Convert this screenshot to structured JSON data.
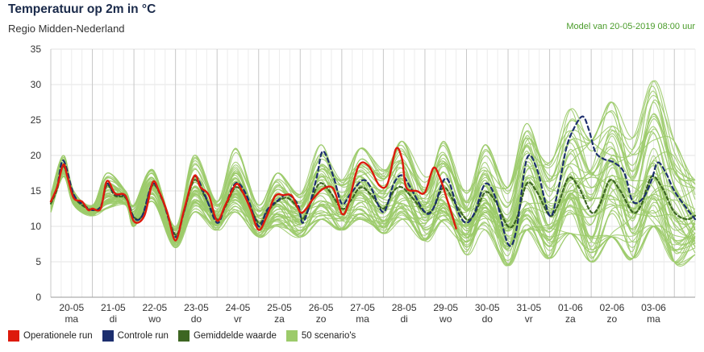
{
  "header": {
    "title": "Temperatuur op 2m in °C",
    "subtitle": "Regio Midden-Nederland",
    "model_run": "Model van 20-05-2019 08:00 uur"
  },
  "colors": {
    "operational": "#dd1a0c",
    "control": "#1c2e6e",
    "mean": "#3d6622",
    "scenarios": "#9ccb6a"
  },
  "legend": [
    {
      "label": "Operationele run",
      "color": "#dd1a0c"
    },
    {
      "label": "Controle run",
      "color": "#1c2e6e"
    },
    {
      "label": "Gemiddelde waarde",
      "color": "#3d6622"
    },
    {
      "label": "50 scenario's",
      "color": "#9ccb6a"
    }
  ],
  "chart_data": {
    "type": "line",
    "title": "Temperatuur op 2m in °C",
    "ylim": [
      0,
      35
    ],
    "yticks": [
      0,
      5,
      10,
      15,
      20,
      25,
      30,
      35
    ],
    "xlim": [
      0,
      15.5
    ],
    "x_unit": "days after 20-05 00:00",
    "day_labels": [
      {
        "date": "20-05",
        "day": "ma"
      },
      {
        "date": "21-05",
        "day": "di"
      },
      {
        "date": "22-05",
        "day": "wo"
      },
      {
        "date": "23-05",
        "day": "do"
      },
      {
        "date": "24-05",
        "day": "vr"
      },
      {
        "date": "25-05",
        "day": "za"
      },
      {
        "date": "26-05",
        "day": "zo"
      },
      {
        "date": "27-05",
        "day": "ma"
      },
      {
        "date": "28-05",
        "day": "di"
      },
      {
        "date": "29-05",
        "day": "wo"
      },
      {
        "date": "30-05",
        "day": "do"
      },
      {
        "date": "31-05",
        "day": "vr"
      },
      {
        "date": "01-06",
        "day": "za"
      },
      {
        "date": "02-06",
        "day": "zo"
      },
      {
        "date": "03-06",
        "day": "ma"
      }
    ],
    "grid": true,
    "series": [
      {
        "name": "Operationele run",
        "style": "solid",
        "points": [
          [
            0.0,
            13.5
          ],
          [
            0.15,
            15.5
          ],
          [
            0.3,
            18.7
          ],
          [
            0.4,
            17.0
          ],
          [
            0.55,
            14.0
          ],
          [
            0.75,
            13.5
          ],
          [
            0.9,
            12.3
          ],
          [
            1.0,
            12.5
          ],
          [
            1.2,
            12.5
          ],
          [
            1.35,
            16.4
          ],
          [
            1.55,
            14.6
          ],
          [
            1.8,
            14.3
          ],
          [
            2.0,
            10.7
          ],
          [
            2.25,
            11.5
          ],
          [
            2.45,
            16.2
          ],
          [
            2.6,
            15.0
          ],
          [
            2.8,
            12.0
          ],
          [
            3.0,
            8.0
          ],
          [
            3.2,
            12.2
          ],
          [
            3.45,
            17.1
          ],
          [
            3.6,
            15.5
          ],
          [
            3.8,
            14.4
          ],
          [
            4.0,
            10.8
          ],
          [
            4.2,
            13.0
          ],
          [
            4.45,
            15.9
          ],
          [
            4.6,
            15.0
          ],
          [
            4.8,
            12.5
          ],
          [
            5.0,
            9.5
          ],
          [
            5.2,
            11.5
          ],
          [
            5.4,
            14.3
          ],
          [
            5.6,
            14.4
          ],
          [
            5.8,
            14.3
          ],
          [
            6.0,
            12.0
          ],
          [
            6.15,
            12.5
          ],
          [
            6.3,
            13.8
          ],
          [
            6.55,
            15.3
          ],
          [
            6.8,
            15.3
          ],
          [
            7.0,
            11.8
          ],
          [
            7.15,
            13.0
          ],
          [
            7.4,
            18.5
          ],
          [
            7.65,
            18.5
          ],
          [
            7.9,
            15.8
          ],
          [
            8.1,
            16.0
          ],
          [
            8.3,
            20.9
          ],
          [
            8.45,
            19.5
          ],
          [
            8.55,
            15.5
          ],
          [
            8.8,
            15.0
          ],
          [
            9.0,
            14.8
          ],
          [
            9.2,
            18.2
          ],
          [
            9.35,
            17.0
          ],
          [
            9.55,
            13.5
          ],
          [
            9.75,
            9.7
          ]
        ]
      },
      {
        "name": "Controle run",
        "style": "dashed",
        "points": [
          [
            0.0,
            13.5
          ],
          [
            0.15,
            15.5
          ],
          [
            0.3,
            19.3
          ],
          [
            0.55,
            14.5
          ],
          [
            0.8,
            13.0
          ],
          [
            1.0,
            12.3
          ],
          [
            1.2,
            12.8
          ],
          [
            1.35,
            16.0
          ],
          [
            1.55,
            14.5
          ],
          [
            1.8,
            14.2
          ],
          [
            2.0,
            11.2
          ],
          [
            2.2,
            11.5
          ],
          [
            2.45,
            16.0
          ],
          [
            2.7,
            13.5
          ],
          [
            3.0,
            8.5
          ],
          [
            3.2,
            12.0
          ],
          [
            3.45,
            17.0
          ],
          [
            3.7,
            14.5
          ],
          [
            4.0,
            10.5
          ],
          [
            4.2,
            13.0
          ],
          [
            4.45,
            16.1
          ],
          [
            4.7,
            14.5
          ],
          [
            5.0,
            10.0
          ],
          [
            5.2,
            12.3
          ],
          [
            5.45,
            13.6
          ],
          [
            5.7,
            14.5
          ],
          [
            5.95,
            13.0
          ],
          [
            6.05,
            10.5
          ],
          [
            6.2,
            12.5
          ],
          [
            6.4,
            17.0
          ],
          [
            6.55,
            20.6
          ],
          [
            6.8,
            17.0
          ],
          [
            7.0,
            13.2
          ],
          [
            7.2,
            14.5
          ],
          [
            7.5,
            16.5
          ],
          [
            7.7,
            15.5
          ],
          [
            8.0,
            12.0
          ],
          [
            8.25,
            16.0
          ],
          [
            8.45,
            17.2
          ],
          [
            8.65,
            15.5
          ],
          [
            9.0,
            12.0
          ],
          [
            9.2,
            12.5
          ],
          [
            9.45,
            16.5
          ],
          [
            9.6,
            16.0
          ],
          [
            9.8,
            12.0
          ],
          [
            10.0,
            10.5
          ],
          [
            10.2,
            12.0
          ],
          [
            10.45,
            16.0
          ],
          [
            10.7,
            14.0
          ],
          [
            11.0,
            7.5
          ],
          [
            11.2,
            9.5
          ],
          [
            11.45,
            19.5
          ],
          [
            11.7,
            18.0
          ],
          [
            12.0,
            11.5
          ],
          [
            12.2,
            15.0
          ],
          [
            12.4,
            21.0
          ],
          [
            12.6,
            24.0
          ],
          [
            12.8,
            25.5
          ],
          [
            12.95,
            23.5
          ],
          [
            13.1,
            20.5
          ],
          [
            13.3,
            19.5
          ],
          [
            13.55,
            19.0
          ],
          [
            13.8,
            17.5
          ],
          [
            14.0,
            13.5
          ],
          [
            14.25,
            14.0
          ],
          [
            14.45,
            16.5
          ],
          [
            14.6,
            19.0
          ],
          [
            14.8,
            17.5
          ],
          [
            15.0,
            15.0
          ],
          [
            15.3,
            12.5
          ],
          [
            15.5,
            11.0
          ]
        ]
      },
      {
        "name": "Gemiddelde waarde",
        "style": "solid",
        "points": [
          [
            0.0,
            13.2
          ],
          [
            0.15,
            15.2
          ],
          [
            0.3,
            18.5
          ],
          [
            0.55,
            14.3
          ],
          [
            0.8,
            12.8
          ],
          [
            1.0,
            12.3
          ],
          [
            1.2,
            12.8
          ],
          [
            1.35,
            15.8
          ],
          [
            1.55,
            14.3
          ],
          [
            1.8,
            14.0
          ],
          [
            2.0,
            11.3
          ],
          [
            2.2,
            11.5
          ],
          [
            2.45,
            15.8
          ],
          [
            2.7,
            13.5
          ],
          [
            3.0,
            8.8
          ],
          [
            3.2,
            12.0
          ],
          [
            3.45,
            16.5
          ],
          [
            3.7,
            14.3
          ],
          [
            4.0,
            11.0
          ],
          [
            4.2,
            12.8
          ],
          [
            4.45,
            15.5
          ],
          [
            4.7,
            14.0
          ],
          [
            5.0,
            10.5
          ],
          [
            5.2,
            12.0
          ],
          [
            5.45,
            13.5
          ],
          [
            5.7,
            14.0
          ],
          [
            5.95,
            12.5
          ],
          [
            6.05,
            11.0
          ],
          [
            6.2,
            12.5
          ],
          [
            6.45,
            16.0
          ],
          [
            6.7,
            15.0
          ],
          [
            7.0,
            12.5
          ],
          [
            7.2,
            13.5
          ],
          [
            7.45,
            15.5
          ],
          [
            7.7,
            14.5
          ],
          [
            8.0,
            12.5
          ],
          [
            8.25,
            15.0
          ],
          [
            8.45,
            15.5
          ],
          [
            8.7,
            14.0
          ],
          [
            9.0,
            12.0
          ],
          [
            9.2,
            12.5
          ],
          [
            9.45,
            15.5
          ],
          [
            9.7,
            13.5
          ],
          [
            10.0,
            11.0
          ],
          [
            10.2,
            11.8
          ],
          [
            10.45,
            14.8
          ],
          [
            10.7,
            13.5
          ],
          [
            11.0,
            10.0
          ],
          [
            11.2,
            11.0
          ],
          [
            11.45,
            16.0
          ],
          [
            11.7,
            14.8
          ],
          [
            12.0,
            11.5
          ],
          [
            12.2,
            13.0
          ],
          [
            12.45,
            16.8
          ],
          [
            12.7,
            15.5
          ],
          [
            13.0,
            12.0
          ],
          [
            13.2,
            13.0
          ],
          [
            13.45,
            16.5
          ],
          [
            13.7,
            15.0
          ],
          [
            14.0,
            12.0
          ],
          [
            14.2,
            13.0
          ],
          [
            14.45,
            17.0
          ],
          [
            14.7,
            15.5
          ],
          [
            15.0,
            12.0
          ],
          [
            15.3,
            11.0
          ],
          [
            15.5,
            11.5
          ]
        ]
      }
    ],
    "scenarios": {
      "name": "50 scenario's",
      "count": 50,
      "envelope_x": [
        0.0,
        0.3,
        0.55,
        1.0,
        1.35,
        1.8,
        2.0,
        2.45,
        3.0,
        3.45,
        4.0,
        4.45,
        5.0,
        5.45,
        6.0,
        6.5,
        7.0,
        7.45,
        8.0,
        8.45,
        9.0,
        9.45,
        10.0,
        10.45,
        11.0,
        11.45,
        12.0,
        12.5,
        13.0,
        13.5,
        14.0,
        14.5,
        15.0,
        15.5
      ],
      "envelope_min": [
        12.0,
        17.0,
        13.0,
        11.5,
        12.5,
        13.0,
        10.0,
        13.5,
        7.0,
        12.0,
        9.5,
        12.0,
        8.5,
        10.0,
        8.5,
        11.0,
        9.5,
        11.0,
        9.0,
        11.0,
        8.0,
        10.5,
        6.0,
        9.5,
        4.5,
        9.5,
        5.5,
        9.0,
        5.0,
        8.5,
        5.5,
        10.0,
        5.0,
        6.0
      ],
      "envelope_max": [
        14.5,
        20.0,
        15.0,
        13.0,
        17.5,
        15.0,
        13.0,
        18.0,
        10.0,
        20.0,
        13.5,
        21.0,
        13.0,
        17.5,
        14.5,
        21.5,
        16.5,
        21.0,
        18.0,
        22.0,
        17.0,
        22.0,
        15.0,
        21.5,
        15.5,
        24.5,
        19.0,
        26.5,
        22.0,
        27.5,
        22.5,
        30.5,
        22.0,
        16.5
      ]
    }
  }
}
